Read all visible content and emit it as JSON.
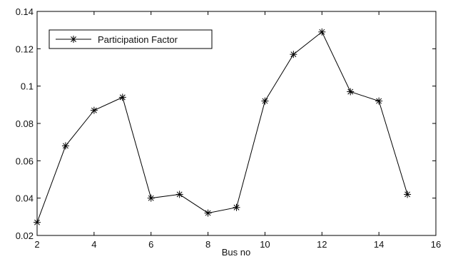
{
  "chart_data": {
    "type": "line",
    "title": "",
    "xlabel": "Bus no",
    "ylabel": "",
    "xlim": [
      2,
      16
    ],
    "ylim": [
      0.02,
      0.14
    ],
    "xticks": [
      2,
      4,
      6,
      8,
      10,
      12,
      14,
      16
    ],
    "yticks": [
      0.02,
      0.04,
      0.06,
      0.08,
      0.1,
      0.12,
      0.14
    ],
    "ytick_labels": [
      "0.02",
      "0.04",
      "0.06",
      "0.08",
      "0.1",
      "0.12",
      "0.14"
    ],
    "grid": false,
    "legend_position": "top-left",
    "marker": "star",
    "line_color": "#000000",
    "series": [
      {
        "name": "Participation Factor",
        "x": [
          2,
          3,
          4,
          5,
          6,
          7,
          8,
          9,
          10,
          11,
          12,
          13,
          14,
          15
        ],
        "y": [
          0.027,
          0.068,
          0.087,
          0.094,
          0.04,
          0.042,
          0.032,
          0.035,
          0.092,
          0.117,
          0.129,
          0.097,
          0.092,
          0.042
        ]
      }
    ]
  }
}
